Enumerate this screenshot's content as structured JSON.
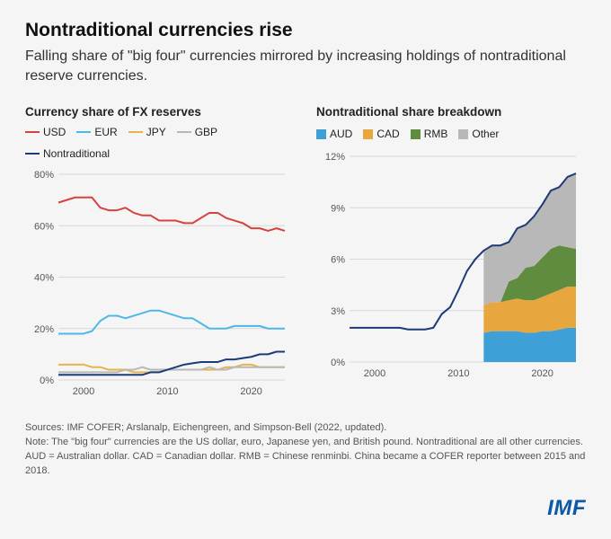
{
  "title": "Nontraditional currencies rise",
  "subtitle": "Falling share of \"big four\" currencies mirrored by increasing holdings of nontraditional reserve currencies.",
  "chart1": {
    "title": "Currency share of FX reserves",
    "ylim": [
      0,
      80
    ],
    "ytick_step": 20,
    "y_suffix": "%",
    "xlim": [
      1997,
      2024
    ],
    "xticks": [
      2000,
      2010,
      2020
    ],
    "grid_color": "#d8d8d8",
    "legend": [
      {
        "label": "USD",
        "color": "#d6433f"
      },
      {
        "label": "EUR",
        "color": "#4fb7e8"
      },
      {
        "label": "JPY",
        "color": "#e8b34a"
      },
      {
        "label": "GBP",
        "color": "#b8b8b8"
      },
      {
        "label": "Nontraditional",
        "color": "#1d3b78"
      }
    ],
    "series": [
      {
        "name": "USD",
        "color": "#d6433f",
        "points": [
          [
            1997,
            69
          ],
          [
            1998,
            70
          ],
          [
            1999,
            71
          ],
          [
            2000,
            71
          ],
          [
            2001,
            71
          ],
          [
            2002,
            67
          ],
          [
            2003,
            66
          ],
          [
            2004,
            66
          ],
          [
            2005,
            67
          ],
          [
            2006,
            65
          ],
          [
            2007,
            64
          ],
          [
            2008,
            64
          ],
          [
            2009,
            62
          ],
          [
            2010,
            62
          ],
          [
            2011,
            62
          ],
          [
            2012,
            61
          ],
          [
            2013,
            61
          ],
          [
            2014,
            63
          ],
          [
            2015,
            65
          ],
          [
            2016,
            65
          ],
          [
            2017,
            63
          ],
          [
            2018,
            62
          ],
          [
            2019,
            61
          ],
          [
            2020,
            59
          ],
          [
            2021,
            59
          ],
          [
            2022,
            58
          ],
          [
            2023,
            59
          ],
          [
            2024,
            58
          ]
        ]
      },
      {
        "name": "EUR",
        "color": "#4fb7e8",
        "points": [
          [
            1997,
            18
          ],
          [
            1998,
            18
          ],
          [
            1999,
            18
          ],
          [
            2000,
            18
          ],
          [
            2001,
            19
          ],
          [
            2002,
            23
          ],
          [
            2003,
            25
          ],
          [
            2004,
            25
          ],
          [
            2005,
            24
          ],
          [
            2006,
            25
          ],
          [
            2007,
            26
          ],
          [
            2008,
            27
          ],
          [
            2009,
            27
          ],
          [
            2010,
            26
          ],
          [
            2011,
            25
          ],
          [
            2012,
            24
          ],
          [
            2013,
            24
          ],
          [
            2014,
            22
          ],
          [
            2015,
            20
          ],
          [
            2016,
            20
          ],
          [
            2017,
            20
          ],
          [
            2018,
            21
          ],
          [
            2019,
            21
          ],
          [
            2020,
            21
          ],
          [
            2021,
            21
          ],
          [
            2022,
            20
          ],
          [
            2023,
            20
          ],
          [
            2024,
            20
          ]
        ]
      },
      {
        "name": "JPY",
        "color": "#e8b34a",
        "points": [
          [
            1997,
            6
          ],
          [
            1998,
            6
          ],
          [
            1999,
            6
          ],
          [
            2000,
            6
          ],
          [
            2001,
            5
          ],
          [
            2002,
            5
          ],
          [
            2003,
            4
          ],
          [
            2004,
            4
          ],
          [
            2005,
            4
          ],
          [
            2006,
            3
          ],
          [
            2007,
            3
          ],
          [
            2008,
            3
          ],
          [
            2009,
            3
          ],
          [
            2010,
            4
          ],
          [
            2011,
            4
          ],
          [
            2012,
            4
          ],
          [
            2013,
            4
          ],
          [
            2014,
            4
          ],
          [
            2015,
            4
          ],
          [
            2016,
            4
          ],
          [
            2017,
            5
          ],
          [
            2018,
            5
          ],
          [
            2019,
            6
          ],
          [
            2020,
            6
          ],
          [
            2021,
            5
          ],
          [
            2022,
            5
          ],
          [
            2023,
            5
          ],
          [
            2024,
            5
          ]
        ]
      },
      {
        "name": "GBP",
        "color": "#b8b8b8",
        "points": [
          [
            1997,
            3
          ],
          [
            1998,
            3
          ],
          [
            1999,
            3
          ],
          [
            2000,
            3
          ],
          [
            2001,
            3
          ],
          [
            2002,
            3
          ],
          [
            2003,
            3
          ],
          [
            2004,
            3
          ],
          [
            2005,
            4
          ],
          [
            2006,
            4
          ],
          [
            2007,
            5
          ],
          [
            2008,
            4
          ],
          [
            2009,
            4
          ],
          [
            2010,
            4
          ],
          [
            2011,
            4
          ],
          [
            2012,
            4
          ],
          [
            2013,
            4
          ],
          [
            2014,
            4
          ],
          [
            2015,
            5
          ],
          [
            2016,
            4
          ],
          [
            2017,
            4
          ],
          [
            2018,
            5
          ],
          [
            2019,
            5
          ],
          [
            2020,
            5
          ],
          [
            2021,
            5
          ],
          [
            2022,
            5
          ],
          [
            2023,
            5
          ],
          [
            2024,
            5
          ]
        ]
      },
      {
        "name": "Nontraditional",
        "color": "#1d3b78",
        "points": [
          [
            1997,
            2
          ],
          [
            1998,
            2
          ],
          [
            1999,
            2
          ],
          [
            2000,
            2
          ],
          [
            2001,
            2
          ],
          [
            2002,
            2
          ],
          [
            2003,
            2
          ],
          [
            2004,
            2
          ],
          [
            2005,
            2
          ],
          [
            2006,
            2
          ],
          [
            2007,
            2
          ],
          [
            2008,
            3
          ],
          [
            2009,
            3
          ],
          [
            2010,
            4
          ],
          [
            2011,
            5
          ],
          [
            2012,
            6
          ],
          [
            2013,
            6.5
          ],
          [
            2014,
            7
          ],
          [
            2015,
            7
          ],
          [
            2016,
            7
          ],
          [
            2017,
            8
          ],
          [
            2018,
            8
          ],
          [
            2019,
            8.5
          ],
          [
            2020,
            9
          ],
          [
            2021,
            10
          ],
          [
            2022,
            10
          ],
          [
            2023,
            11
          ],
          [
            2024,
            11
          ]
        ]
      }
    ]
  },
  "chart2": {
    "title": "Nontraditional share breakdown",
    "ylim": [
      0,
      12
    ],
    "ytick_step": 3,
    "y_suffix": "%",
    "xlim": [
      1997,
      2024
    ],
    "xticks": [
      2000,
      2010,
      2020
    ],
    "grid_color": "#d8d8d8",
    "legend": [
      {
        "label": "AUD",
        "color": "#3fa0d8"
      },
      {
        "label": "CAD",
        "color": "#e8a63f"
      },
      {
        "label": "RMB",
        "color": "#5f8c3f"
      },
      {
        "label": "Other",
        "color": "#b8b8b8"
      }
    ],
    "line_series": {
      "name": "Nontraditional",
      "color": "#1d3b78",
      "points": [
        [
          1997,
          2
        ],
        [
          1998,
          2
        ],
        [
          1999,
          2
        ],
        [
          2000,
          2
        ],
        [
          2001,
          2
        ],
        [
          2002,
          2
        ],
        [
          2003,
          2
        ],
        [
          2004,
          1.9
        ],
        [
          2005,
          1.9
        ],
        [
          2006,
          1.9
        ],
        [
          2007,
          2
        ],
        [
          2008,
          2.8
        ],
        [
          2009,
          3.2
        ],
        [
          2010,
          4.2
        ],
        [
          2011,
          5.3
        ],
        [
          2012,
          6.0
        ],
        [
          2013,
          6.5
        ],
        [
          2014,
          6.8
        ],
        [
          2015,
          6.8
        ],
        [
          2016,
          7.0
        ],
        [
          2017,
          7.8
        ],
        [
          2018,
          8.0
        ],
        [
          2019,
          8.5
        ],
        [
          2020,
          9.2
        ],
        [
          2021,
          10.0
        ],
        [
          2022,
          10.2
        ],
        [
          2023,
          10.8
        ],
        [
          2024,
          11.0
        ]
      ]
    },
    "stack_x": [
      2013,
      2014,
      2015,
      2016,
      2017,
      2018,
      2019,
      2020,
      2021,
      2022,
      2023,
      2024
    ],
    "stack_layers": [
      {
        "name": "AUD",
        "color": "#3fa0d8",
        "values": [
          1.7,
          1.8,
          1.8,
          1.8,
          1.8,
          1.7,
          1.7,
          1.8,
          1.8,
          1.9,
          2.0,
          2.0
        ]
      },
      {
        "name": "CAD",
        "color": "#e8a63f",
        "values": [
          1.6,
          1.7,
          1.7,
          1.8,
          1.9,
          1.9,
          1.9,
          2.0,
          2.2,
          2.3,
          2.4,
          2.4
        ]
      },
      {
        "name": "RMB",
        "color": "#5f8c3f",
        "values": [
          0.0,
          0.0,
          0.0,
          1.1,
          1.2,
          1.9,
          2.0,
          2.3,
          2.6,
          2.6,
          2.3,
          2.2
        ]
      },
      {
        "name": "Other",
        "color": "#b8b8b8",
        "values": [
          3.2,
          3.3,
          3.3,
          2.3,
          2.9,
          2.5,
          2.9,
          3.1,
          3.4,
          3.4,
          4.1,
          4.4
        ]
      }
    ]
  },
  "footer": {
    "line1": "Sources: IMF COFER; Arslanalp, Eichengreen, and Simpson-Bell (2022, updated).",
    "line2": "Note: The \"big four\" currencies are the US dollar, euro, Japanese yen, and British pound. Nontraditional are all other currencies. AUD = Australian dollar. CAD = Canadian dollar. RMB = Chinese renminbi. China became a COFER reporter between 2015 and 2018."
  },
  "logo_text": "IMF"
}
